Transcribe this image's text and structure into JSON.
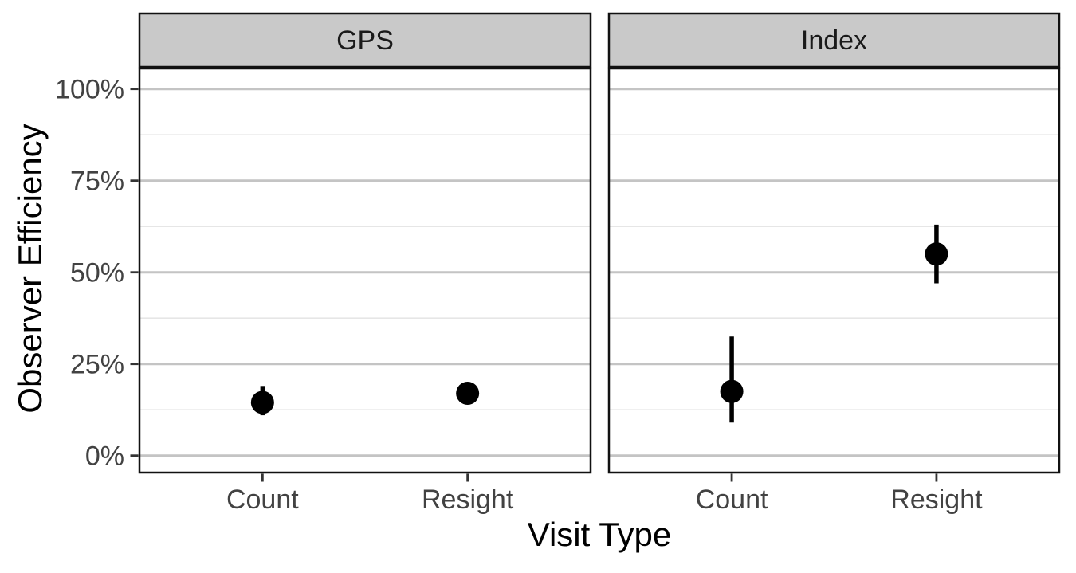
{
  "figure": {
    "x_axis_title": "Visit Type",
    "y_axis_title": "Observer Efficiency"
  },
  "chart_data": {
    "type": "scatter",
    "subtype": "pointrange-faceted",
    "facets": [
      {
        "label": "GPS",
        "points": [
          {
            "category": "Count",
            "value": 14.5,
            "lower": 11.0,
            "upper": 19.0
          },
          {
            "category": "Resight",
            "value": 17.0,
            "lower": 15.0,
            "upper": 19.5
          }
        ]
      },
      {
        "label": "Index",
        "points": [
          {
            "category": "Count",
            "value": 17.5,
            "lower": 9.0,
            "upper": 32.5
          },
          {
            "category": "Resight",
            "value": 55.0,
            "lower": 47.0,
            "upper": 63.0
          }
        ]
      }
    ],
    "x_categories": [
      "Count",
      "Resight"
    ],
    "xlabel": "Visit Type",
    "ylabel": "Observer Efficiency",
    "y_unit": "percent",
    "ylim": [
      0,
      100
    ],
    "y_ticks_major": [
      0,
      25,
      50,
      75,
      100
    ],
    "y_tick_labels": [
      "0%",
      "25%",
      "50%",
      "75%",
      "100%"
    ],
    "y_ticks_minor": [
      12.5,
      37.5,
      62.5,
      87.5
    ],
    "grid": "major+minor",
    "legend_position": "none"
  },
  "colors": {
    "background": "#FFFFFF",
    "panel_background": "#FFFFFF",
    "panel_border": "#111111",
    "strip_fill": "#C9C9C9",
    "strip_border": "#111111",
    "strip_text": "#1A1A1A",
    "grid_major": "#C4C4C4",
    "grid_minor": "#E6E6E6",
    "axis_tick": "#333333",
    "axis_text": "#424242",
    "axis_title": "#000000",
    "point": "#000000",
    "error_bar": "#000000"
  }
}
